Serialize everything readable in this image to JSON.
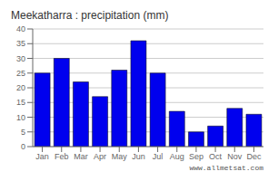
{
  "chart_data": {
    "type": "bar",
    "title": "Meekatharra : precipitation (mm)",
    "categories": [
      "Jan",
      "Feb",
      "Mar",
      "Apr",
      "May",
      "Jun",
      "Jul",
      "Aug",
      "Sep",
      "Oct",
      "Nov",
      "Dec"
    ],
    "values": [
      25,
      30,
      22,
      17,
      26,
      36,
      25,
      12,
      5,
      7,
      13,
      11
    ],
    "color": "#0000ee",
    "ylim": [
      0,
      40
    ],
    "yticks": [
      0,
      5,
      10,
      15,
      20,
      25,
      30,
      35,
      40
    ],
    "grid": true,
    "annotations": [
      "www.allmetsat.com"
    ]
  }
}
